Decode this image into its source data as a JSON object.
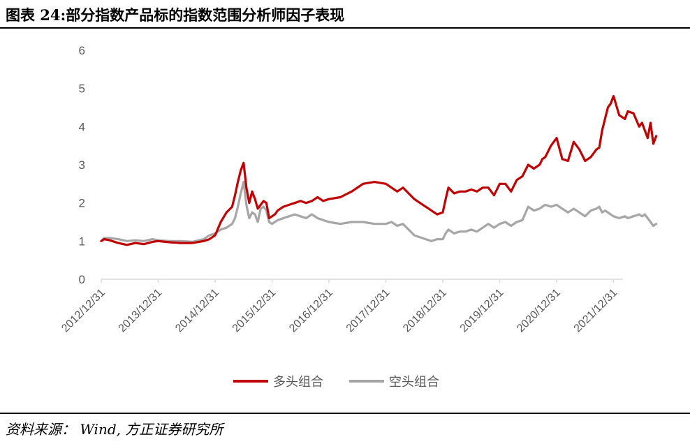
{
  "header": {
    "title": "图表 24:部分指数产品标的指数范围分析师因子表现"
  },
  "footer": {
    "source": "资料来源： Wind,  方正证券研究所"
  },
  "chart_data": {
    "type": "line",
    "xlabel": "",
    "ylabel": "",
    "ylim": [
      0,
      6
    ],
    "yticks": [
      "0",
      "1",
      "2",
      "3",
      "4",
      "5",
      "6"
    ],
    "xticks": [
      "2012/12/31",
      "2013/12/31",
      "2014/12/31",
      "2015/12/31",
      "2016/12/31",
      "2017/12/31",
      "2018/12/31",
      "2019/12/31",
      "2020/12/31",
      "2021/12/31"
    ],
    "grid": false,
    "legend_position": "bottom",
    "series": [
      {
        "name": "多头组合",
        "color": "#C00000",
        "x": [
          0,
          0.05,
          0.15,
          0.3,
          0.45,
          0.6,
          0.75,
          0.9,
          1.0,
          1.2,
          1.4,
          1.6,
          1.8,
          1.9,
          2.0,
          2.1,
          2.2,
          2.3,
          2.35,
          2.4,
          2.45,
          2.5,
          2.55,
          2.6,
          2.65,
          2.7,
          2.75,
          2.8,
          2.85,
          2.9,
          2.95,
          3.0,
          3.05,
          3.1,
          3.2,
          3.3,
          3.4,
          3.5,
          3.6,
          3.7,
          3.8,
          3.9,
          4.0,
          4.2,
          4.4,
          4.6,
          4.8,
          5.0,
          5.1,
          5.2,
          5.3,
          5.4,
          5.5,
          5.6,
          5.7,
          5.8,
          5.9,
          6.0,
          6.05,
          6.1,
          6.2,
          6.3,
          6.4,
          6.5,
          6.6,
          6.7,
          6.8,
          6.9,
          7.0,
          7.1,
          7.2,
          7.3,
          7.4,
          7.5,
          7.6,
          7.7,
          7.75,
          7.8,
          7.9,
          8.0,
          8.1,
          8.2,
          8.3,
          8.4,
          8.5,
          8.6,
          8.7,
          8.75,
          8.8,
          8.85,
          8.9,
          8.95,
          9.0,
          9.1,
          9.2,
          9.25,
          9.35,
          9.45,
          9.5,
          9.55,
          9.6,
          9.65,
          9.7,
          9.75
        ],
        "values": [
          1.0,
          1.05,
          1.02,
          0.95,
          0.9,
          0.95,
          0.92,
          0.98,
          1.0,
          0.97,
          0.95,
          0.95,
          1.0,
          1.05,
          1.15,
          1.5,
          1.75,
          1.9,
          2.2,
          2.55,
          2.85,
          3.05,
          2.4,
          2.0,
          2.3,
          2.1,
          1.85,
          1.95,
          2.05,
          2.0,
          1.6,
          1.65,
          1.7,
          1.8,
          1.9,
          1.95,
          2.0,
          2.05,
          2.0,
          2.05,
          2.15,
          2.05,
          2.1,
          2.15,
          2.3,
          2.5,
          2.55,
          2.5,
          2.4,
          2.3,
          2.4,
          2.25,
          2.1,
          2.0,
          1.9,
          1.8,
          1.7,
          1.75,
          2.1,
          2.4,
          2.25,
          2.3,
          2.3,
          2.35,
          2.3,
          2.4,
          2.4,
          2.2,
          2.5,
          2.5,
          2.3,
          2.6,
          2.7,
          3.0,
          2.9,
          3.0,
          3.15,
          3.2,
          3.5,
          3.7,
          3.15,
          3.1,
          3.6,
          3.4,
          3.1,
          3.2,
          3.4,
          3.45,
          3.9,
          4.2,
          4.5,
          4.6,
          4.8,
          4.3,
          4.2,
          4.4,
          4.35,
          4.0,
          4.1,
          3.9,
          3.7,
          4.1,
          3.55,
          3.75
        ]
      },
      {
        "name": "空头组合",
        "color": "#A6A6A6",
        "x": [
          0,
          0.05,
          0.15,
          0.3,
          0.45,
          0.6,
          0.75,
          0.9,
          1.0,
          1.2,
          1.4,
          1.6,
          1.8,
          1.9,
          2.0,
          2.1,
          2.2,
          2.3,
          2.35,
          2.4,
          2.45,
          2.5,
          2.55,
          2.6,
          2.65,
          2.7,
          2.75,
          2.8,
          2.85,
          2.9,
          2.95,
          3.0,
          3.05,
          3.1,
          3.2,
          3.3,
          3.4,
          3.5,
          3.6,
          3.7,
          3.8,
          3.9,
          4.0,
          4.2,
          4.4,
          4.6,
          4.8,
          5.0,
          5.1,
          5.2,
          5.3,
          5.4,
          5.5,
          5.6,
          5.7,
          5.8,
          5.9,
          6.0,
          6.05,
          6.1,
          6.2,
          6.3,
          6.4,
          6.5,
          6.6,
          6.7,
          6.8,
          6.9,
          7.0,
          7.1,
          7.2,
          7.3,
          7.4,
          7.5,
          7.6,
          7.7,
          7.75,
          7.8,
          7.9,
          8.0,
          8.1,
          8.2,
          8.3,
          8.4,
          8.5,
          8.6,
          8.7,
          8.75,
          8.8,
          8.85,
          8.9,
          8.95,
          9.0,
          9.1,
          9.2,
          9.25,
          9.35,
          9.45,
          9.5,
          9.55,
          9.6,
          9.65,
          9.7,
          9.75
        ],
        "values": [
          1.0,
          1.08,
          1.08,
          1.05,
          1.0,
          1.02,
          1.0,
          1.05,
          1.02,
          1.0,
          1.0,
          0.98,
          1.05,
          1.15,
          1.2,
          1.3,
          1.35,
          1.45,
          1.6,
          1.9,
          2.25,
          2.55,
          1.95,
          1.6,
          1.75,
          1.7,
          1.5,
          1.85,
          1.9,
          1.8,
          1.5,
          1.45,
          1.5,
          1.55,
          1.6,
          1.65,
          1.7,
          1.65,
          1.6,
          1.7,
          1.6,
          1.55,
          1.5,
          1.45,
          1.5,
          1.5,
          1.45,
          1.45,
          1.5,
          1.4,
          1.45,
          1.3,
          1.15,
          1.1,
          1.05,
          1.0,
          1.05,
          1.05,
          1.2,
          1.3,
          1.2,
          1.25,
          1.25,
          1.3,
          1.25,
          1.35,
          1.45,
          1.35,
          1.45,
          1.5,
          1.4,
          1.5,
          1.55,
          1.9,
          1.8,
          1.85,
          1.9,
          1.95,
          1.9,
          1.95,
          1.85,
          1.75,
          1.85,
          1.75,
          1.65,
          1.8,
          1.85,
          1.9,
          1.75,
          1.8,
          1.75,
          1.7,
          1.65,
          1.6,
          1.65,
          1.6,
          1.65,
          1.7,
          1.65,
          1.7,
          1.6,
          1.5,
          1.4,
          1.45
        ]
      }
    ]
  }
}
